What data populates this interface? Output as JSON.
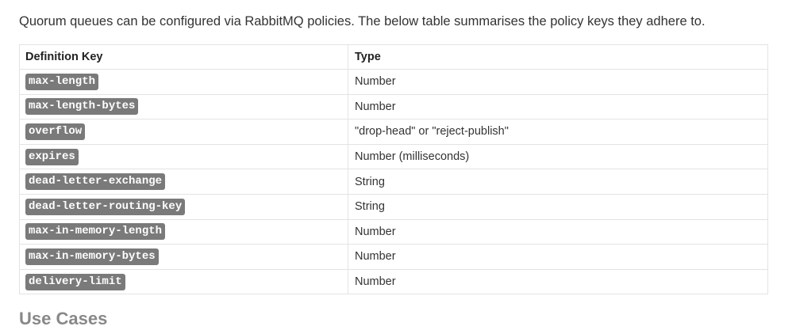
{
  "intro_text": "Quorum queues can be configured via RabbitMQ policies. The below table summarises the policy keys they adhere to.",
  "table": {
    "headers": {
      "key": "Definition Key",
      "type": "Type"
    },
    "rows": [
      {
        "key": "max-length",
        "type": "Number"
      },
      {
        "key": "max-length-bytes",
        "type": "Number"
      },
      {
        "key": "overflow",
        "type": "\"drop-head\" or \"reject-publish\""
      },
      {
        "key": "expires",
        "type": "Number (milliseconds)"
      },
      {
        "key": "dead-letter-exchange",
        "type": "String"
      },
      {
        "key": "dead-letter-routing-key",
        "type": "String"
      },
      {
        "key": "max-in-memory-length",
        "type": "Number"
      },
      {
        "key": "max-in-memory-bytes",
        "type": "Number"
      },
      {
        "key": "delivery-limit",
        "type": "Number"
      }
    ]
  },
  "next_section_heading": "Use Cases",
  "colors": {
    "tag_background": "#7a7a7a",
    "border": "#e3e3e3",
    "text": "#333333"
  }
}
